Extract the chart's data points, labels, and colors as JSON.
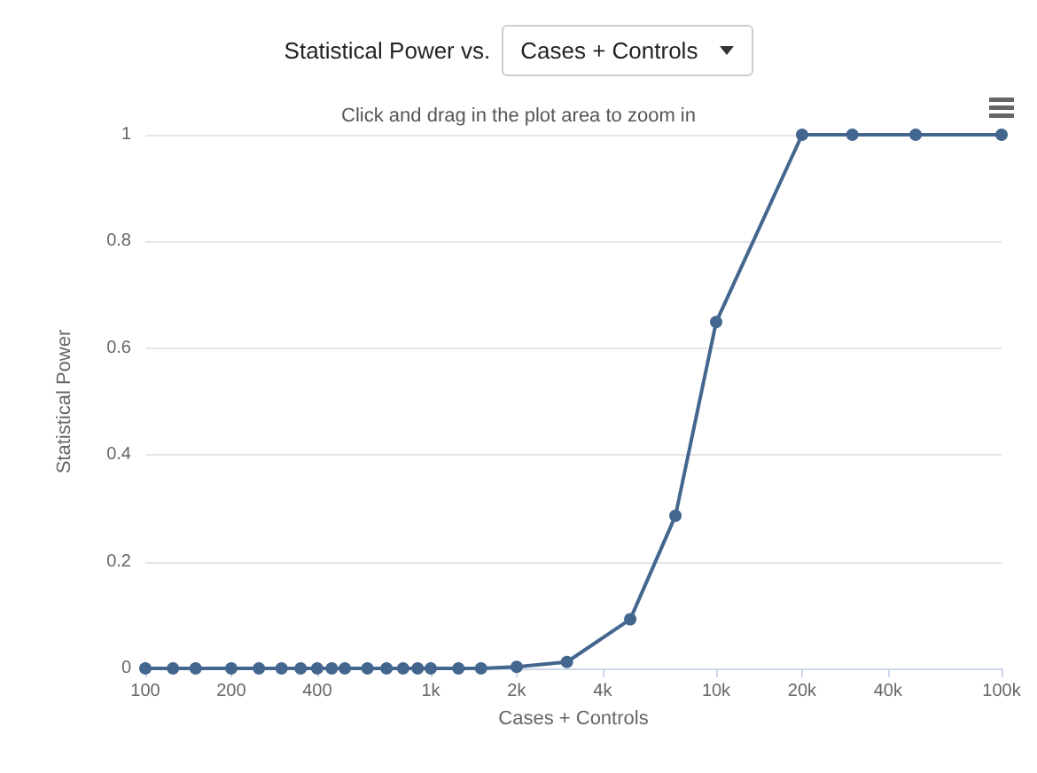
{
  "chart_data": {
    "type": "line",
    "title": "Statistical Power vs.",
    "subtitle": "Click and drag in the plot area to zoom in",
    "xlabel": "Cases + Controls",
    "ylabel": "Statistical Power",
    "annotations": [
      "Cases + Controls"
    ],
    "x": [
      100,
      125,
      150,
      200,
      250,
      300,
      350,
      400,
      450,
      500,
      600,
      700,
      800,
      900,
      1000,
      1250,
      1500,
      2000,
      3000,
      5000,
      7200,
      10000,
      20000,
      30000,
      50000,
      100000
    ],
    "series": [
      {
        "color": "#43668f",
        "values": [
          0,
          0,
          0,
          0,
          0,
          0,
          0,
          0,
          0,
          0,
          0,
          0,
          0,
          0,
          0,
          0,
          0,
          0.003,
          0.012,
          0.092,
          0.286,
          0.649,
          1,
          1,
          1,
          1
        ]
      }
    ],
    "log": "x",
    "xlim": [
      100,
      100000
    ],
    "xticks": [
      100,
      200,
      400,
      {
        "value": 1000,
        "label": "1k"
      },
      {
        "value": 2000,
        "label": "2k"
      },
      {
        "value": 4000,
        "label": "4k"
      },
      {
        "value": 10000,
        "label": "10k"
      },
      {
        "value": 20000,
        "label": "20k"
      },
      {
        "value": 40000,
        "label": "40k"
      },
      {
        "value": 100000,
        "label": "100k"
      }
    ],
    "ylim": [
      0,
      1
    ],
    "yticks": [
      0,
      0.2,
      0.4,
      0.6,
      0.8,
      1
    ],
    "grid": "y",
    "marker": "circle",
    "line_style": "solid"
  }
}
